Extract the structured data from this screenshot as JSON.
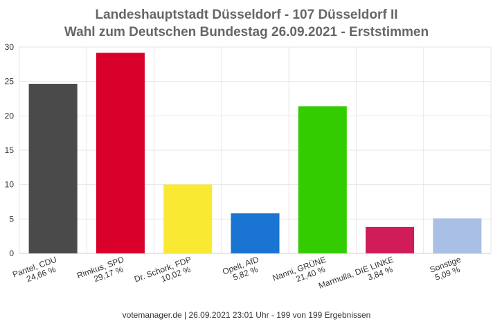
{
  "chart_data": {
    "type": "bar",
    "title_lines": [
      "Landeshauptstadt Düsseldorf - 107 Düsseldorf II",
      "Wahl zum Deutschen Bundestag 26.09.2021  - Erststimmen"
    ],
    "ylim": [
      0,
      30
    ],
    "yticks": [
      0,
      5,
      10,
      15,
      20,
      25,
      30
    ],
    "grid": true,
    "categories": [
      {
        "name": "Pantel, CDU",
        "value_label": "24,66 %",
        "value": 24.66,
        "color": "#4a4a4a"
      },
      {
        "name": "Rimkus, SPD",
        "value_label": "29,17 %",
        "value": 29.17,
        "color": "#d9002b"
      },
      {
        "name": "Dr. Schork, FDP",
        "value_label": "10,02 %",
        "value": 10.02,
        "color": "#f9e933"
      },
      {
        "name": "Opelt, AfD",
        "value_label": "5,82 %",
        "value": 5.82,
        "color": "#1a74d1"
      },
      {
        "name": "Nanni, GRÜNE",
        "value_label": "21,40 %",
        "value": 21.4,
        "color": "#33cc00"
      },
      {
        "name": "Marmulla, DIE LINKE",
        "value_label": "3,84 %",
        "value": 3.84,
        "color": "#d01c58"
      },
      {
        "name": "Sonstige",
        "value_label": "5,09 %",
        "value": 5.09,
        "color": "#aabfe6"
      }
    ],
    "footer": "votemanager.de | 26.09.2021 23:01 Uhr - 199 von 199 Ergebnissen"
  }
}
